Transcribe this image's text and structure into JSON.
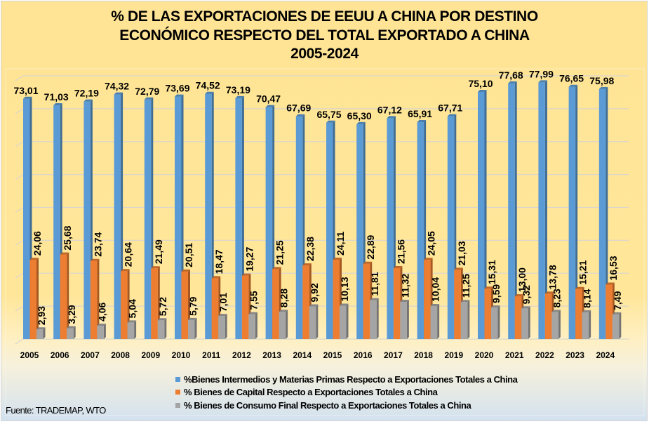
{
  "chart_data": {
    "type": "bar",
    "title": [
      "% DE LAS EXPORTACIONES DE EEUU A CHINA POR DESTINO",
      "ECONÓMICO RESPECTO DEL TOTAL EXPORTADO A CHINA",
      "2005-2024"
    ],
    "xlabel": "",
    "ylabel": "",
    "ylim": [
      0,
      80
    ],
    "grid": true,
    "grid_step": 10,
    "y_tick_labels_visible": false,
    "legend_position": "bottom-right",
    "categories": [
      "2005",
      "2006",
      "2007",
      "2008",
      "2009",
      "2010",
      "2011",
      "2012",
      "2013",
      "2014",
      "2015",
      "2016",
      "2017",
      "2018",
      "2019",
      "2020",
      "2021",
      "2022",
      "2023",
      "2024"
    ],
    "series": [
      {
        "name": "%Bienes Intermedios y Materias Primas Respecto a Exportaciones Totales a China",
        "color": "#5B9BD5",
        "values": [
          73.01,
          71.03,
          72.19,
          74.32,
          72.79,
          73.69,
          74.52,
          73.19,
          70.47,
          67.69,
          65.75,
          65.3,
          67.12,
          65.91,
          67.71,
          75.1,
          77.68,
          77.99,
          76.65,
          75.98
        ],
        "labels": [
          "73,01",
          "71,03",
          "72,19",
          "74,32",
          "72,79",
          "73,69",
          "74,52",
          "73,19",
          "70,47",
          "67,69",
          "65,75",
          "65,30",
          "67,12",
          "65,91",
          "67,71",
          "75,10",
          "77,68",
          "77,99",
          "76,65",
          "75,98"
        ]
      },
      {
        "name": "% Bienes de Capital Respecto a Exportaciones Totales a China",
        "color": "#ED7D31",
        "values": [
          24.06,
          25.68,
          23.74,
          20.64,
          21.49,
          20.51,
          18.47,
          19.27,
          21.25,
          22.38,
          24.11,
          22.89,
          21.56,
          24.05,
          21.03,
          15.31,
          13.0,
          13.78,
          15.21,
          16.53
        ],
        "labels": [
          "24,06",
          "25,68",
          "23,74",
          "20,64",
          "21,49",
          "20,51",
          "18,47",
          "19,27",
          "21,25",
          "22,38",
          "24,11",
          "22,89",
          "21,56",
          "24,05",
          "21,03",
          "15,31",
          "13,00",
          "13,78",
          "15,21",
          "16,53"
        ]
      },
      {
        "name": "% Bienes de Consumo Final Respecto a Exportaciones Totales a China",
        "color": "#A5A5A5",
        "values": [
          2.93,
          3.29,
          4.06,
          5.04,
          5.72,
          5.79,
          7.01,
          7.55,
          8.28,
          9.92,
          10.13,
          11.81,
          11.32,
          10.04,
          11.25,
          9.59,
          9.32,
          8.23,
          8.14,
          7.49
        ],
        "labels": [
          "2,93",
          "3,29",
          "4,06",
          "5,04",
          "5,72",
          "5,79",
          "7,01",
          "7,55",
          "8,28",
          "9,92",
          "10,13",
          "11,81",
          "11,32",
          "10,04",
          "11,25",
          "9,59",
          "9,32",
          "8,23",
          "8,14",
          "7,49"
        ]
      }
    ],
    "source": "Fuente: TRADEMAP, WTO"
  }
}
